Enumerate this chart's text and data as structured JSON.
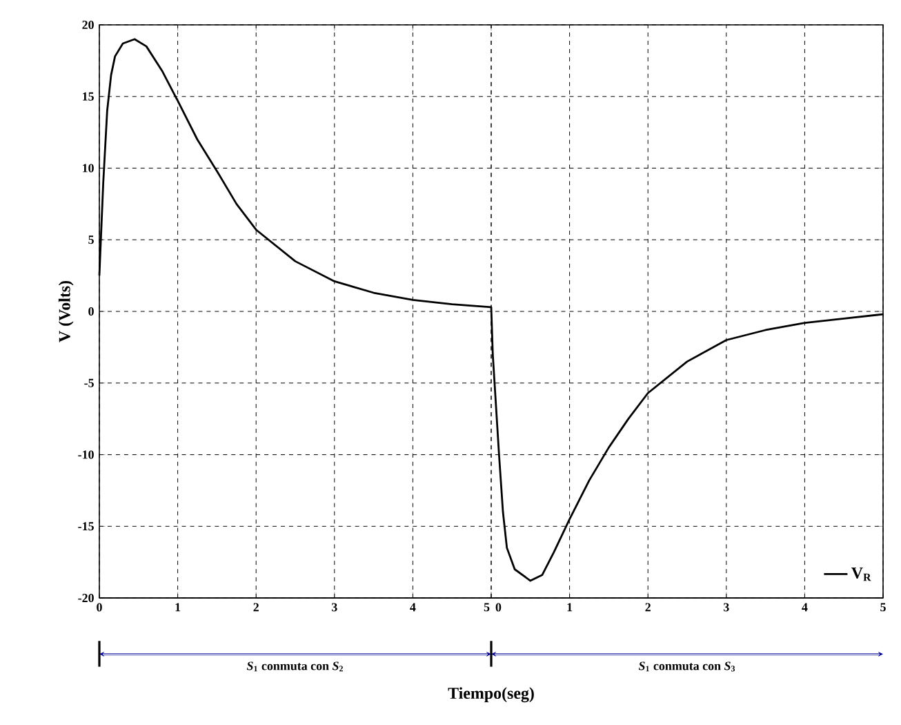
{
  "chart_data": {
    "type": "line",
    "xlabel": "Tiempo(seg)",
    "ylabel": "V (Volts)",
    "xlim": [
      0,
      10
    ],
    "ylim": [
      -20,
      20
    ],
    "xticks": [
      0,
      1,
      2,
      3,
      4,
      5
    ],
    "x2lim": [
      -5,
      5
    ],
    "x2ticks": [
      0,
      1,
      2,
      3,
      4,
      5
    ],
    "yticks": [
      -20,
      -15,
      -10,
      -5,
      0,
      5,
      10,
      15,
      20
    ],
    "grid": true,
    "legend": "bottom right",
    "line_style": "solid",
    "marker": "none",
    "annotations": [
      "*S*$_{1}$ conmuta con *S*$_{2}$",
      "*S*$_{1}$ conmuta con *S*$_{3}$"
    ],
    "series": [
      {
        "name": "V$_{R}$",
        "color": "#000000",
        "x": [
          0,
          0.05,
          0.1,
          0.15,
          0.2,
          0.3,
          0.45,
          0.6,
          0.8,
          1,
          1.25,
          1.5,
          1.75,
          2,
          2.5,
          3,
          3.5,
          4,
          4.5,
          5,
          5.02,
          5.1,
          5.15,
          5.2,
          5.3,
          5.5,
          5.65,
          5.8,
          6,
          6.25,
          6.5,
          6.75,
          7,
          7.5,
          8,
          8.5,
          9,
          9.5,
          10
        ],
        "values": [
          2.5,
          9,
          14,
          16.5,
          17.8,
          18.7,
          19,
          18.5,
          16.8,
          14.7,
          12,
          9.8,
          7.5,
          5.7,
          3.5,
          2.1,
          1.3,
          0.8,
          0.5,
          0.3,
          -3,
          -10,
          -14,
          -16.5,
          -18,
          -18.8,
          -18.4,
          -16.8,
          -14.5,
          -11.8,
          -9.5,
          -7.5,
          -5.7,
          -3.5,
          -2,
          -1.3,
          -0.8,
          -0.5,
          -0.2
        ]
      }
    ]
  }
}
